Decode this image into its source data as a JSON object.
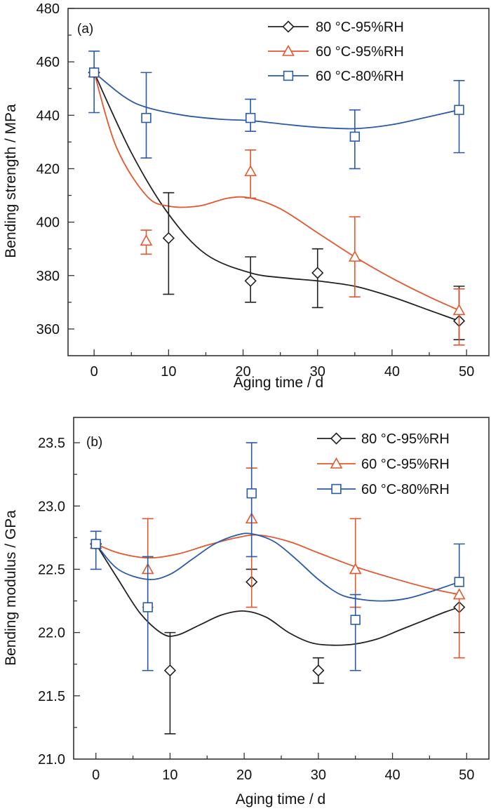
{
  "chart_data": [
    {
      "type": "line",
      "panel_label": "(a)",
      "title": "",
      "xlabel": "Aging time / d",
      "ylabel": "Bending strength / MPa",
      "xlim": [
        -3.5,
        53
      ],
      "ylim": [
        350,
        480
      ],
      "xticks": [
        0,
        10,
        20,
        30,
        40,
        50
      ],
      "xticks_minor": [
        5,
        15,
        25,
        35,
        45
      ],
      "yticks": [
        360,
        380,
        400,
        420,
        440,
        460,
        480
      ],
      "yticks_minor": [
        370,
        390,
        410,
        430,
        450,
        470
      ],
      "grid": false,
      "legend_position": "top-right",
      "series": [
        {
          "name": "80 °C-95%RH",
          "marker": "diamond",
          "color": "#222222",
          "x": [
            0,
            10,
            21,
            30,
            49
          ],
          "y": [
            456,
            394,
            378,
            381,
            363
          ],
          "err_high": [
            456,
            411,
            387,
            390,
            376
          ],
          "err_low": [
            456,
            373,
            370,
            368,
            356
          ]
        },
        {
          "name": "60 °C-95%RH",
          "marker": "triangle",
          "color": "#e4572e",
          "x": [
            0,
            7,
            21,
            35,
            49
          ],
          "y": [
            456,
            393,
            419,
            387,
            367
          ],
          "err_high": [
            456,
            397,
            427,
            402,
            375
          ],
          "err_low": [
            456,
            388,
            409,
            372,
            354
          ]
        },
        {
          "name": "60 °C-80%RH",
          "marker": "square",
          "color": "#2a5aa8",
          "x": [
            0,
            7,
            21,
            35,
            49
          ],
          "y": [
            456,
            439,
            439,
            432,
            442
          ],
          "err_high": [
            464,
            456,
            446,
            442,
            453
          ],
          "err_low": [
            441,
            424,
            434,
            420,
            426
          ]
        }
      ],
      "fit_curves": [
        {
          "series": "80 °C-95%RH",
          "x": [
            0,
            5,
            10,
            15,
            21,
            26,
            30,
            35,
            40,
            45,
            49
          ],
          "y": [
            456,
            426,
            403,
            388,
            381,
            379,
            378,
            376,
            372,
            367,
            363
          ]
        },
        {
          "series": "60 °C-95%RH",
          "x": [
            0,
            3,
            7,
            10,
            14,
            18,
            21,
            25,
            30,
            35,
            40,
            45,
            49
          ],
          "y": [
            456,
            428,
            410,
            406,
            406,
            409,
            409,
            405,
            396,
            387,
            379,
            372,
            367
          ]
        },
        {
          "series": "60 °C-80%RH",
          "x": [
            0,
            4,
            7,
            12,
            17,
            21,
            26,
            30,
            35,
            40,
            45,
            49
          ],
          "y": [
            456,
            447,
            443,
            440,
            438.5,
            438,
            436.5,
            435.5,
            435,
            436.5,
            439.5,
            442
          ]
        }
      ]
    },
    {
      "type": "line",
      "panel_label": "(b)",
      "title": "",
      "xlabel": "Aging time / d",
      "ylabel": "Bending modulus / GPa",
      "xlim": [
        -3,
        53
      ],
      "ylim": [
        21.0,
        23.7
      ],
      "xticks": [
        0,
        10,
        20,
        30,
        40,
        50
      ],
      "xticks_minor": [
        5,
        15,
        25,
        35,
        45
      ],
      "yticks": [
        21.0,
        21.5,
        22.0,
        22.5,
        23.0,
        23.5
      ],
      "yticks_minor": [
        21.25,
        21.75,
        22.25,
        22.75,
        23.25
      ],
      "grid": false,
      "legend_position": "top-right",
      "series": [
        {
          "name": "80 °C-95%RH",
          "marker": "diamond",
          "color": "#222222",
          "x": [
            0,
            10,
            21,
            30,
            49
          ],
          "y": [
            22.7,
            21.7,
            22.4,
            21.7,
            22.2
          ],
          "err_high": [
            22.7,
            22.0,
            22.5,
            21.8,
            22.2
          ],
          "err_low": [
            22.7,
            21.2,
            22.4,
            21.6,
            22.0
          ]
        },
        {
          "name": "60 °C-95%RH",
          "marker": "triangle",
          "color": "#e4572e",
          "x": [
            0,
            7,
            21,
            35,
            49
          ],
          "y": [
            22.7,
            22.5,
            22.9,
            22.5,
            22.3
          ],
          "err_high": [
            22.7,
            22.9,
            23.3,
            22.9,
            22.3
          ],
          "err_low": [
            22.7,
            22.2,
            22.2,
            22.2,
            21.8
          ]
        },
        {
          "name": "60 °C-80%RH",
          "marker": "square",
          "color": "#2a5aa8",
          "x": [
            0,
            7,
            21,
            35,
            49
          ],
          "y": [
            22.7,
            22.2,
            23.1,
            22.1,
            22.4
          ],
          "err_high": [
            22.8,
            22.6,
            23.5,
            22.3,
            22.7
          ],
          "err_low": [
            22.5,
            21.7,
            22.6,
            21.7,
            22.4
          ]
        }
      ],
      "fit_curves": [
        {
          "series": "80 °C-95%RH",
          "x": [
            0,
            3,
            6,
            9,
            11,
            14,
            17,
            20,
            23,
            26,
            29,
            32,
            35,
            38,
            41,
            44,
            47,
            49
          ],
          "y": [
            22.7,
            22.42,
            22.15,
            21.99,
            21.98,
            22.06,
            22.14,
            22.17,
            22.12,
            22.0,
            21.92,
            21.9,
            21.91,
            21.95,
            22.02,
            22.09,
            22.16,
            22.2
          ]
        },
        {
          "series": "60 °C-95%RH",
          "x": [
            0,
            3,
            7,
            11,
            15,
            19,
            22,
            26,
            30,
            35,
            40,
            45,
            49
          ],
          "y": [
            22.7,
            22.63,
            22.59,
            22.62,
            22.69,
            22.75,
            22.77,
            22.72,
            22.63,
            22.52,
            22.43,
            22.35,
            22.3
          ]
        },
        {
          "series": "60 °C-80%RH",
          "x": [
            0,
            3,
            7,
            10,
            13,
            16,
            19,
            21,
            24,
            27,
            30,
            33,
            36,
            39,
            42,
            45,
            49
          ],
          "y": [
            22.7,
            22.5,
            22.42,
            22.46,
            22.58,
            22.7,
            22.77,
            22.78,
            22.72,
            22.58,
            22.42,
            22.3,
            22.26,
            22.25,
            22.27,
            22.32,
            22.4
          ]
        }
      ]
    }
  ]
}
